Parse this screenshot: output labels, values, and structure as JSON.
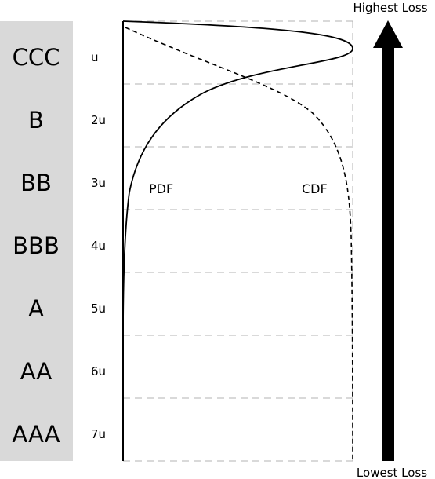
{
  "colors": {
    "rating_panel": "#d9d9d9",
    "grid": "#b3b3b3",
    "curve": "#000000",
    "arrow": "#000000"
  },
  "ratings": [
    "CCC",
    "B",
    "BB",
    "BBB",
    "A",
    "AA",
    "AAA"
  ],
  "ticks": [
    "u",
    "2u",
    "3u",
    "4u",
    "5u",
    "6u",
    "7u"
  ],
  "labels": {
    "pdf": "PDF",
    "cdf": "CDF",
    "highest_loss": "Highest Loss",
    "lowest_loss": "Lowest Loss"
  },
  "icons": {
    "arrow": "up-arrow-icon"
  }
}
